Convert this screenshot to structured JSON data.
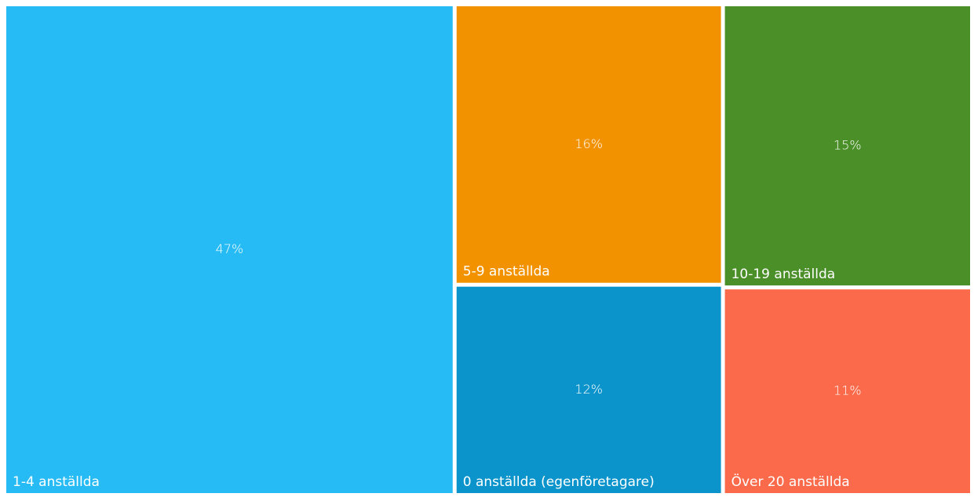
{
  "chart_data": {
    "type": "treemap",
    "categories": [
      "1-4 anställda",
      "5-9 anställda",
      "0 anställda (egenföretagare)",
      "10-19 anställda",
      "Över 20 anställda"
    ],
    "values": [
      47,
      16,
      12,
      15,
      11
    ],
    "value_labels": [
      "47%",
      "16%",
      "12%",
      "15%",
      "11%"
    ],
    "colors": [
      "#26bbf4",
      "#f39200",
      "#0b94cb",
      "#4a8f28",
      "#fb6b4b"
    ]
  }
}
